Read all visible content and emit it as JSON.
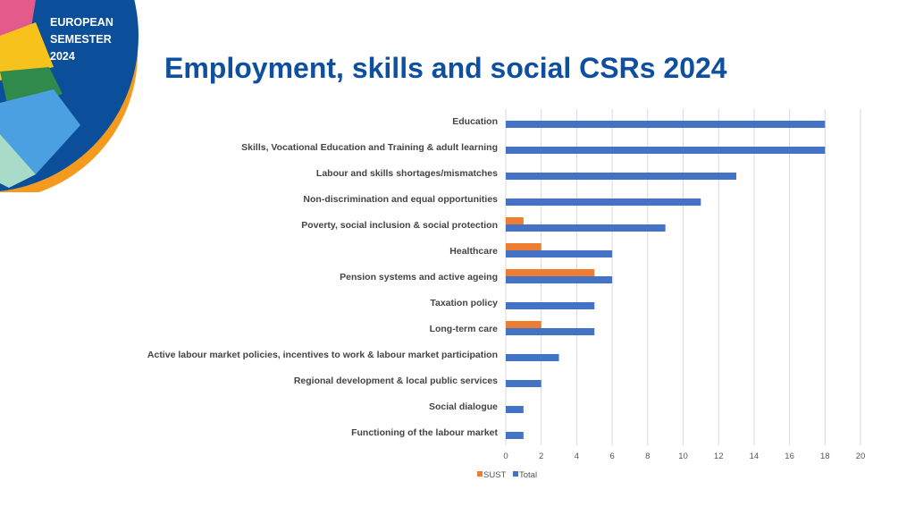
{
  "branding": {
    "logo_lines": [
      "EUROPEAN",
      "SEMESTER",
      "2024"
    ]
  },
  "header": {
    "title": "Employment, skills and social CSRs 2024"
  },
  "colors": {
    "title": "#0f4fa0",
    "sust": "#ed7d31",
    "total": "#4472c4",
    "grid": "#d9d9d9",
    "logo_blue": "#0b4f9a",
    "logo_orange": "#f39a1f"
  },
  "chart_data": {
    "type": "bar",
    "orientation": "horizontal",
    "title": "",
    "xlabel": "",
    "ylabel": "",
    "xlim": [
      0,
      20
    ],
    "xticks": [
      0,
      2,
      4,
      6,
      8,
      10,
      12,
      14,
      16,
      18,
      20
    ],
    "grid": true,
    "legend_position": "bottom",
    "categories": [
      "Education",
      "Skills, Vocational Education and Training & adult learning",
      "Labour and skills shortages/mismatches",
      "Non-discrimination and equal opportunities",
      "Poverty, social inclusion &  social protection",
      "Healthcare",
      "Pension systems  and active ageing",
      "Taxation policy",
      "Long-term care",
      "Active labour market policies, incentives to work & labour market participation",
      "Regional development & local public services",
      "Social dialogue",
      "Functioning of the labour market"
    ],
    "series": [
      {
        "name": "SUST",
        "values": [
          0,
          0,
          0,
          0,
          1,
          2,
          5,
          0,
          2,
          0,
          0,
          0,
          0
        ]
      },
      {
        "name": "Total",
        "values": [
          18,
          18,
          13,
          11,
          9,
          6,
          6,
          5,
          5,
          3,
          2,
          1,
          1
        ]
      }
    ]
  }
}
